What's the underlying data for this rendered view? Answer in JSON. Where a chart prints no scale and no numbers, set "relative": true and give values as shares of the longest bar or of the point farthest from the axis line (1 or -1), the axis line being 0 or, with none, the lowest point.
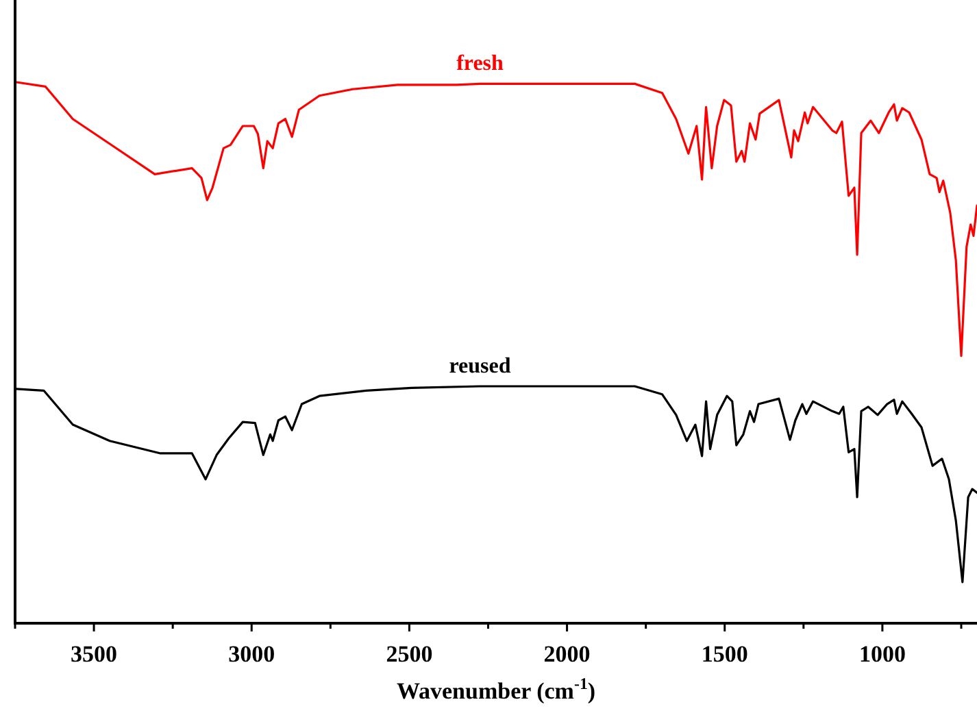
{
  "chart_data": {
    "type": "line",
    "relative": true,
    "xlabel": "Wavenumber (cm$^{-1}$)",
    "xlim": [
      3750,
      700
    ],
    "xticks": [
      {
        "value": 3750,
        "label": null
      },
      {
        "value": 3500,
        "label": "3500"
      },
      {
        "value": 3250,
        "label": null
      },
      {
        "value": 3000,
        "label": "3000"
      },
      {
        "value": 2750,
        "label": null
      },
      {
        "value": 2500,
        "label": "2500"
      },
      {
        "value": 2250,
        "label": null
      },
      {
        "value": 2000,
        "label": "2000"
      },
      {
        "value": 1750,
        "label": null
      },
      {
        "value": 1500,
        "label": "1500"
      },
      {
        "value": 1250,
        "label": null
      },
      {
        "value": 1000,
        "label": "1000"
      },
      {
        "value": 750,
        "label": null
      }
    ],
    "grid": false,
    "marker": "none",
    "line_style": "solid",
    "series": [
      {
        "name": "fresh",
        "color": "#ff0000",
        "x": [
          3746,
          3654,
          3567,
          3437,
          3307,
          3189,
          3159,
          3141,
          3124,
          3089,
          3067,
          3028,
          2993,
          2980,
          2963,
          2950,
          2933,
          2915,
          2893,
          2872,
          2850,
          2785,
          2680,
          2537,
          2350,
          2276,
          1785,
          1698,
          1654,
          1615,
          1589,
          1572,
          1559,
          1541,
          1524,
          1502,
          1480,
          1463,
          1446,
          1437,
          1420,
          1402,
          1389,
          1328,
          1289,
          1280,
          1267,
          1246,
          1237,
          1220,
          1159,
          1146,
          1128,
          1107,
          1089,
          1080,
          1067,
          1037,
          1011,
          980,
          963,
          954,
          937,
          915,
          876,
          850,
          828,
          819,
          807,
          785,
          767,
          750,
          733,
          720,
          711,
          700
        ],
        "values": [
          1.0,
          0.992,
          0.932,
          0.881,
          0.83,
          0.841,
          0.823,
          0.782,
          0.805,
          0.878,
          0.884,
          0.919,
          0.919,
          0.904,
          0.841,
          0.891,
          0.878,
          0.924,
          0.932,
          0.899,
          0.949,
          0.975,
          0.987,
          0.995,
          0.995,
          0.997,
          0.997,
          0.98,
          0.932,
          0.868,
          0.919,
          0.82,
          0.954,
          0.841,
          0.919,
          0.967,
          0.957,
          0.853,
          0.873,
          0.853,
          0.924,
          0.894,
          0.942,
          0.967,
          0.861,
          0.911,
          0.891,
          0.944,
          0.924,
          0.954,
          0.911,
          0.906,
          0.927,
          0.79,
          0.805,
          0.681,
          0.906,
          0.929,
          0.906,
          0.944,
          0.959,
          0.929,
          0.952,
          0.944,
          0.894,
          0.83,
          0.823,
          0.797,
          0.818,
          0.759,
          0.671,
          0.494,
          0.696,
          0.737,
          0.716,
          0.772
        ]
      },
      {
        "name": "reused",
        "color": "#000000",
        "x": [
          3746,
          3659,
          3567,
          3450,
          3289,
          3189,
          3146,
          3111,
          3072,
          3028,
          2989,
          2963,
          2941,
          2933,
          2915,
          2893,
          2872,
          2841,
          2785,
          2637,
          2493,
          2276,
          1785,
          1698,
          1654,
          1620,
          1593,
          1572,
          1559,
          1546,
          1524,
          1493,
          1476,
          1463,
          1441,
          1420,
          1407,
          1393,
          1328,
          1293,
          1276,
          1254,
          1241,
          1220,
          1159,
          1137,
          1124,
          1107,
          1089,
          1080,
          1067,
          1045,
          1015,
          985,
          963,
          954,
          937,
          907,
          876,
          841,
          811,
          789,
          767,
          746,
          728,
          715,
          700
        ],
        "values": [
          0.433,
          0.43,
          0.367,
          0.337,
          0.314,
          0.314,
          0.266,
          0.311,
          0.342,
          0.372,
          0.37,
          0.311,
          0.349,
          0.337,
          0.375,
          0.382,
          0.357,
          0.405,
          0.42,
          0.43,
          0.435,
          0.438,
          0.438,
          0.423,
          0.385,
          0.337,
          0.367,
          0.309,
          0.41,
          0.322,
          0.385,
          0.42,
          0.41,
          0.329,
          0.349,
          0.392,
          0.372,
          0.405,
          0.415,
          0.339,
          0.375,
          0.405,
          0.387,
          0.41,
          0.392,
          0.387,
          0.4,
          0.316,
          0.322,
          0.233,
          0.392,
          0.4,
          0.385,
          0.405,
          0.413,
          0.387,
          0.41,
          0.387,
          0.362,
          0.291,
          0.304,
          0.266,
          0.19,
          0.076,
          0.233,
          0.248,
          0.241
        ]
      }
    ]
  }
}
